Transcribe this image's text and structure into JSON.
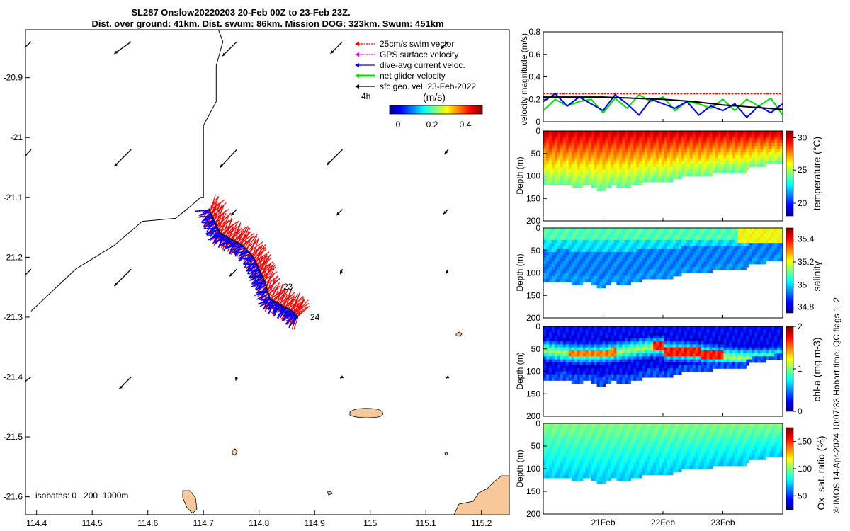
{
  "header": {
    "title_line1": "SL287 Onslow20220203 20-Feb 00Z to 23-Feb 23Z.",
    "title_line2": "Dist. over ground: 41km. Dist. swum: 86km. Mission DOG: 323km. Swum: 451km"
  },
  "colors": {
    "swim_vector": "#ff0000",
    "gps_velocity": "#ff00ff",
    "dive_avg_current": "#0000ff",
    "net_velocity": "#00dd00",
    "sfc_geo_vel": "#000000",
    "land": "#f7c99a"
  },
  "map": {
    "legend": [
      {
        "label": "25cm/s swim vector",
        "color": "#ff0000"
      },
      {
        "label": "GPS surface velocity",
        "color": "#ff00ff"
      },
      {
        "label": "dive-avg current veloc.",
        "color": "#0000ff"
      },
      {
        "label": "net glider velocity",
        "color": "#00dd00"
      },
      {
        "label": "sfc geo. vel. 23-Feb-2022",
        "color": "#000000"
      }
    ],
    "time_marker": "4h",
    "colorbar_title": "(m/s)",
    "colorbar_ticks": [
      "0",
      "0.2",
      "0.4"
    ],
    "isobaths_label": "isobaths: 0   200  1000m",
    "x_ticks": [
      "114.4",
      "114.5",
      "114.6",
      "114.7",
      "114.8",
      "114.9",
      "115",
      "115.1",
      "115.2"
    ],
    "y_ticks": [
      "-20.9",
      "-21",
      "-21.1",
      "-21.2",
      "-21.3",
      "-21.4",
      "-21.5",
      "-21.6"
    ],
    "day_labels": [
      "23",
      "24"
    ]
  },
  "panels": {
    "time_ticks": [
      "21Feb",
      "22Feb",
      "23Feb"
    ],
    "depth_ticks": [
      "0",
      "50",
      "100",
      "150",
      "200"
    ],
    "depth_label": "Depth (m)",
    "velocity": {
      "ylabel": "velocity magnitude (m/s)",
      "y_ticks": [
        "0",
        "0.2",
        "0.4",
        "0.6",
        "0.8"
      ]
    },
    "temperature": {
      "label": "temperature (°C)",
      "ticks": [
        "20",
        "25",
        "30"
      ]
    },
    "salinity": {
      "label": "salinity",
      "ticks": [
        "34.8",
        "35",
        "35.2",
        "35.4"
      ]
    },
    "chla": {
      "label": "chl-a (mg m-3)",
      "ticks": [
        "0",
        "1",
        "2"
      ]
    },
    "oxygen": {
      "label": "Ox. sat. ratio (%)",
      "ticks": [
        "50",
        "100",
        "150"
      ]
    }
  },
  "footer": {
    "credit": "© IMOS 14-Apr-2024 10:07:33 Hobart time. QC flags 1  2"
  },
  "chart_data": [
    {
      "type": "scatter",
      "title": "SL287 Onslow20220203 20-Feb 00Z to 23-Feb 23Z.",
      "xlim": [
        114.38,
        115.25
      ],
      "ylim": [
        -21.63,
        -20.82
      ],
      "x_ticks": [
        114.4,
        114.5,
        114.6,
        114.7,
        114.8,
        114.9,
        115,
        115.1,
        115.2
      ],
      "y_ticks": [
        -20.9,
        -21,
        -21.1,
        -21.2,
        -21.3,
        -21.4,
        -21.5,
        -21.6
      ],
      "glider_track": {
        "lon": [
          114.71,
          114.72,
          114.73,
          114.75,
          114.77,
          114.79,
          114.8,
          114.81,
          114.82,
          114.84,
          114.86,
          114.87
        ],
        "lat": [
          -21.12,
          -21.14,
          -21.16,
          -21.17,
          -21.18,
          -21.2,
          -21.22,
          -21.24,
          -21.27,
          -21.28,
          -21.29,
          -21.3
        ]
      },
      "bathymetry_line": {
        "lon": [
          114.39,
          114.47,
          114.54,
          114.59,
          114.65,
          114.67,
          114.695,
          114.7,
          114.7,
          114.723,
          114.723,
          114.732,
          114.735,
          114.725
        ],
        "lat": [
          -21.29,
          -21.22,
          -21.18,
          -21.14,
          -21.135,
          -21.12,
          -21.1,
          -21.1,
          -20.98,
          -20.94,
          -20.88,
          -20.85,
          -20.84,
          -20.815
        ]
      },
      "surface_vectors": {
        "lon": [
          114.39,
          114.57,
          114.76,
          114.95,
          115.14,
          114.39,
          114.57,
          114.76,
          114.95,
          115.14,
          114.76,
          114.95,
          115.14,
          114.39,
          114.57,
          114.76,
          114.95,
          115.14,
          114.39,
          114.57,
          114.76,
          114.95,
          115.14
        ],
        "lat": [
          -20.84,
          -20.84,
          -20.84,
          -20.84,
          -20.84,
          -21.02,
          -21.02,
          -21.02,
          -21.02,
          -21.02,
          -21.12,
          -21.12,
          -21.12,
          -21.22,
          -21.22,
          -21.22,
          -21.22,
          -21.22,
          -21.4,
          -21.4,
          -21.4,
          -21.4,
          -21.4
        ],
        "u": [
          -0.14,
          -0.14,
          -0.12,
          -0.1,
          -0.06,
          -0.16,
          -0.14,
          -0.14,
          -0.13,
          -0.03,
          -0.05,
          -0.05,
          -0.04,
          -0.14,
          -0.14,
          -0.06,
          -0.02,
          -0.02,
          -0.16,
          -0.1,
          -0.01,
          -0.02,
          -0.02
        ],
        "v": [
          -0.13,
          -0.1,
          -0.12,
          -0.1,
          -0.06,
          -0.18,
          -0.14,
          -0.15,
          -0.13,
          -0.04,
          -0.05,
          -0.05,
          -0.04,
          -0.14,
          -0.14,
          -0.06,
          -0.04,
          -0.04,
          -0.12,
          -0.1,
          -0.03,
          -0.01,
          -0.01
        ]
      }
    },
    {
      "type": "line",
      "xlim": [
        20.0,
        24.0
      ],
      "ylim": [
        0,
        0.8
      ],
      "x_ticks": [
        21,
        22,
        23
      ],
      "x_tick_labels": [
        "21Feb",
        "22Feb",
        "23Feb"
      ],
      "y_ticks": [
        0,
        0.2,
        0.4,
        0.6,
        0.8
      ],
      "ylabel": "velocity magnitude (m/s)",
      "series": [
        {
          "name": "25cm/s swim vector",
          "color": "#ff0000",
          "x": [
            20.0,
            24.0
          ],
          "y": [
            0.25,
            0.25
          ]
        },
        {
          "name": "net glider velocity",
          "color": "#00dd00",
          "x": [
            20.0,
            20.2,
            20.4,
            20.6,
            20.8,
            21.0,
            21.2,
            21.4,
            21.6,
            21.8,
            22.0,
            22.2,
            22.4,
            22.6,
            22.8,
            23.0,
            23.2,
            23.4,
            23.6,
            23.8,
            24.0
          ],
          "y": [
            0.1,
            0.2,
            0.14,
            0.18,
            0.2,
            0.08,
            0.21,
            0.12,
            0.24,
            0.18,
            0.22,
            0.1,
            0.18,
            0.16,
            0.12,
            0.2,
            0.1,
            0.2,
            0.14,
            0.21,
            0.06
          ]
        },
        {
          "name": "dive-avg current veloc.",
          "color": "#0000ff",
          "x": [
            20.0,
            20.2,
            20.4,
            20.6,
            20.8,
            21.0,
            21.2,
            21.4,
            21.6,
            21.8,
            22.0,
            22.2,
            22.4,
            22.6,
            22.8,
            23.0,
            23.2,
            23.4,
            23.6,
            23.8,
            24.0
          ],
          "y": [
            0.18,
            0.25,
            0.14,
            0.22,
            0.16,
            0.1,
            0.24,
            0.16,
            0.06,
            0.2,
            0.16,
            0.12,
            0.18,
            0.06,
            0.14,
            0.1,
            0.16,
            0.04,
            0.14,
            0.08,
            0.16
          ]
        },
        {
          "name": "sfc geo. vel. 23-Feb-2022",
          "color": "#000000",
          "x": [
            20.0,
            20.5,
            21.0,
            21.5,
            22.0,
            22.5,
            23.0,
            23.5,
            24.0
          ],
          "y": [
            0.22,
            0.22,
            0.22,
            0.21,
            0.2,
            0.18,
            0.15,
            0.13,
            0.11
          ]
        }
      ]
    },
    {
      "type": "heatmap",
      "xlim": [
        20.0,
        24.0
      ],
      "ylim": [
        200,
        0
      ],
      "ylabel": "Depth (m)",
      "clabel": "temperature (°C)",
      "clim": [
        18,
        31
      ]
    },
    {
      "type": "heatmap",
      "xlim": [
        20.0,
        24.0
      ],
      "ylim": [
        200,
        0
      ],
      "ylabel": "Depth (m)",
      "clabel": "salinity",
      "clim": [
        34.75,
        35.5
      ]
    },
    {
      "type": "heatmap",
      "xlim": [
        20.0,
        24.0
      ],
      "ylim": [
        200,
        0
      ],
      "ylabel": "Depth (m)",
      "clabel": "chl-a (mg m-3)",
      "clim": [
        0,
        2
      ]
    },
    {
      "type": "heatmap",
      "xlim": [
        20.0,
        24.0
      ],
      "ylim": [
        200,
        0
      ],
      "ylabel": "Depth (m)",
      "clabel": "Ox. sat. ratio (%)",
      "clim": [
        25,
        175
      ]
    }
  ]
}
